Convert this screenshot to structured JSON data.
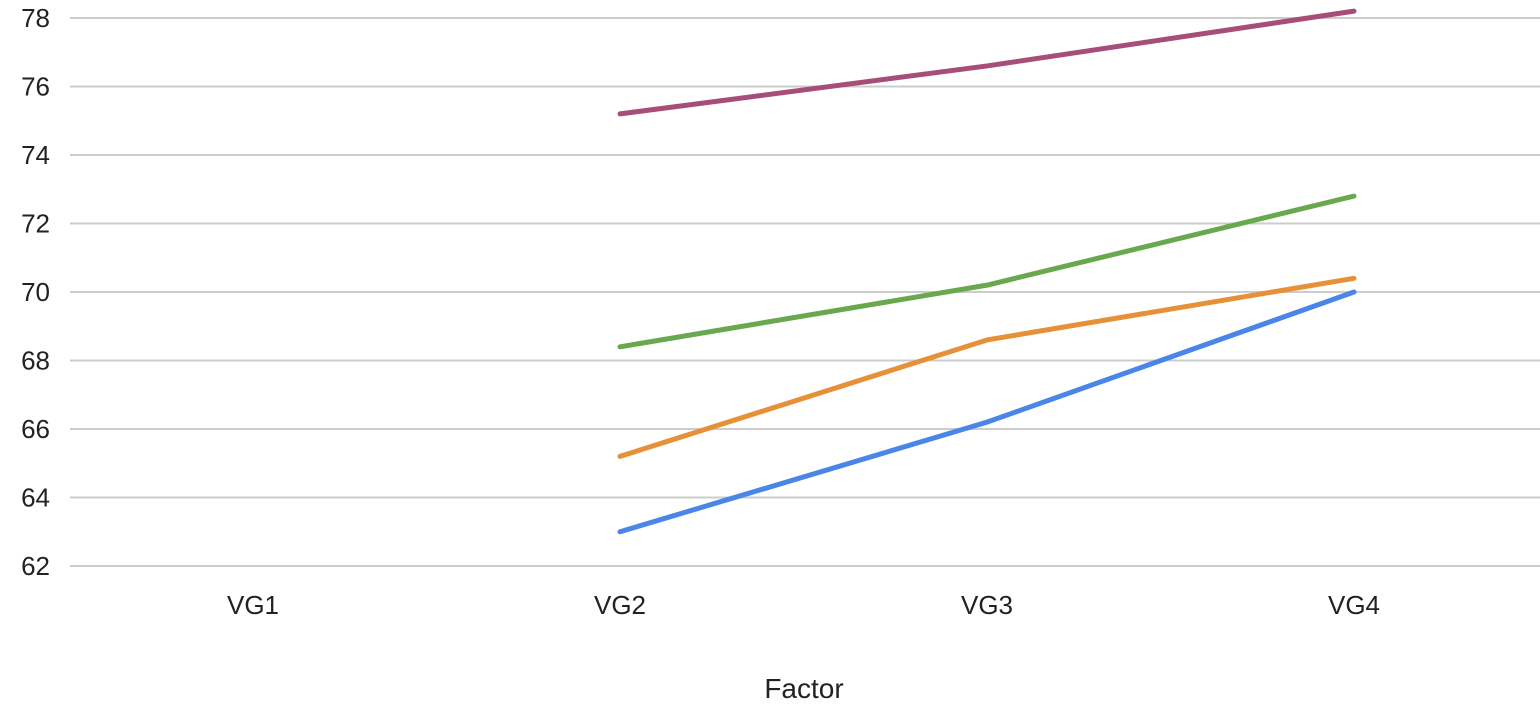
{
  "chart_data": {
    "type": "line",
    "title": "",
    "xlabel": "Factor",
    "ylabel": "",
    "categories": [
      "VG1",
      "VG2",
      "VG3",
      "VG4"
    ],
    "ylim": [
      62,
      78
    ],
    "yticks": [
      62,
      64,
      66,
      68,
      70,
      72,
      74,
      76,
      78
    ],
    "grid": true,
    "series": [
      {
        "color": "#4a86e8",
        "values": [
          null,
          63.0,
          66.2,
          70.0
        ]
      },
      {
        "color": "#e69138",
        "values": [
          null,
          65.2,
          68.6,
          70.4
        ]
      },
      {
        "color": "#6aa84f",
        "values": [
          null,
          68.4,
          70.2,
          72.8
        ]
      },
      {
        "color": "#a64d79",
        "values": [
          null,
          75.2,
          76.6,
          78.2
        ]
      }
    ]
  }
}
